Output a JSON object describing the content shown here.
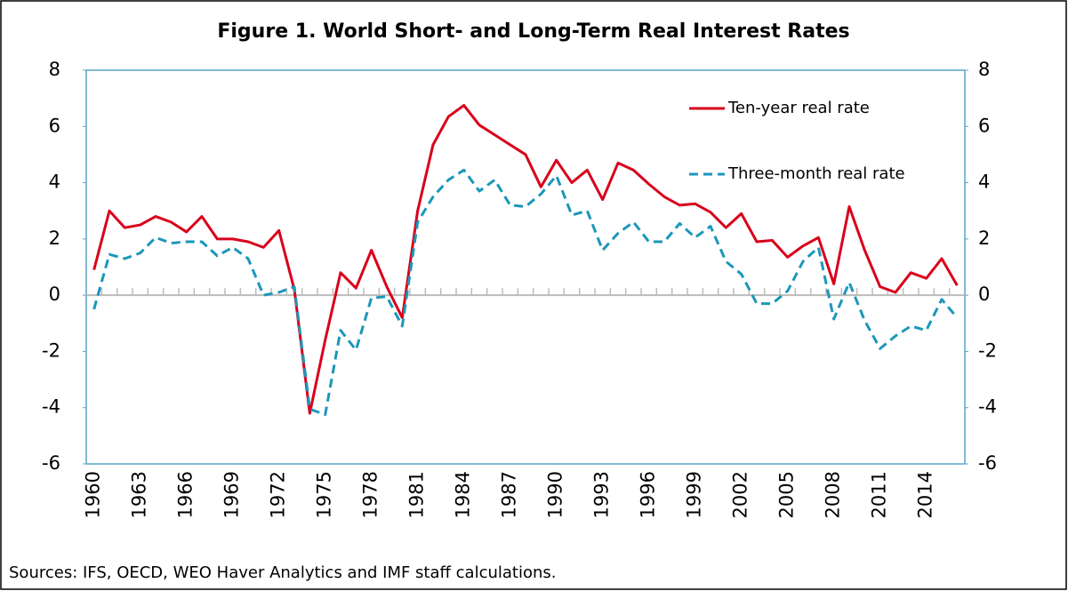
{
  "chart_data": {
    "type": "line",
    "title": "Figure 1. World Short- and Long-Term Real Interest Rates",
    "source": "Sources: IFS, OECD, WEO Haver Analytics and IMF staff calculations.",
    "categories": [
      "1960",
      null,
      null,
      "1963",
      null,
      null,
      "1966",
      null,
      null,
      "1969",
      null,
      null,
      "1972",
      null,
      null,
      "1975",
      null,
      null,
      "1978",
      null,
      null,
      "1981",
      null,
      null,
      "1984",
      null,
      null,
      "1987",
      null,
      null,
      "1990",
      null,
      null,
      "1993",
      null,
      null,
      "1996",
      null,
      null,
      "1999",
      null,
      null,
      "2002",
      null,
      null,
      "2005",
      null,
      null,
      "2008",
      null,
      null,
      "2011",
      null,
      null,
      "2014",
      null,
      null
    ],
    "series": [
      {
        "name": "Ten-year real rate",
        "color": "#d9001b",
        "dash": false,
        "values": [
          0.9,
          3.0,
          2.4,
          2.5,
          2.8,
          2.6,
          2.25,
          2.8,
          2.0,
          2.0,
          1.9,
          1.7,
          2.3,
          0.2,
          -4.2,
          -1.6,
          0.8,
          0.25,
          1.6,
          0.3,
          -0.8,
          3.0,
          5.35,
          6.35,
          6.75,
          6.05,
          5.7,
          5.35,
          5.0,
          3.85,
          4.8,
          4.0,
          4.45,
          3.4,
          4.7,
          4.45,
          3.95,
          3.5,
          3.2,
          3.25,
          2.95,
          2.4,
          2.9,
          1.9,
          1.95,
          1.35,
          1.75,
          2.05,
          0.4,
          3.15,
          1.6,
          0.3,
          0.1,
          0.8,
          0.6,
          1.3,
          0.35
        ]
      },
      {
        "name": "Three-month real rate",
        "color": "#1b97b9",
        "dash": true,
        "values": [
          -0.5,
          1.45,
          1.3,
          1.5,
          2.05,
          1.85,
          1.9,
          1.9,
          1.4,
          1.7,
          1.3,
          0.0,
          0.1,
          0.3,
          -4.05,
          -4.25,
          -1.25,
          -1.95,
          -0.1,
          -0.05,
          -1.1,
          2.6,
          3.5,
          4.1,
          4.45,
          3.7,
          4.1,
          3.2,
          3.15,
          3.6,
          4.25,
          2.85,
          3.0,
          1.6,
          2.2,
          2.6,
          1.9,
          1.9,
          2.55,
          2.05,
          2.45,
          1.2,
          0.75,
          -0.3,
          -0.3,
          0.15,
          1.2,
          1.7,
          -0.85,
          0.45,
          -0.9,
          -1.9,
          -1.45,
          -1.1,
          -1.25,
          -0.15,
          -0.8
        ]
      }
    ],
    "ylim": [
      -6,
      8
    ],
    "yticks": [
      -6,
      -4,
      -2,
      0,
      2,
      4,
      6,
      8
    ],
    "y2lim": [
      -6,
      8
    ],
    "y2ticks": [
      -6,
      -4,
      -2,
      0,
      2,
      4,
      6,
      8
    ],
    "grid": false,
    "legend": "upper right"
  }
}
